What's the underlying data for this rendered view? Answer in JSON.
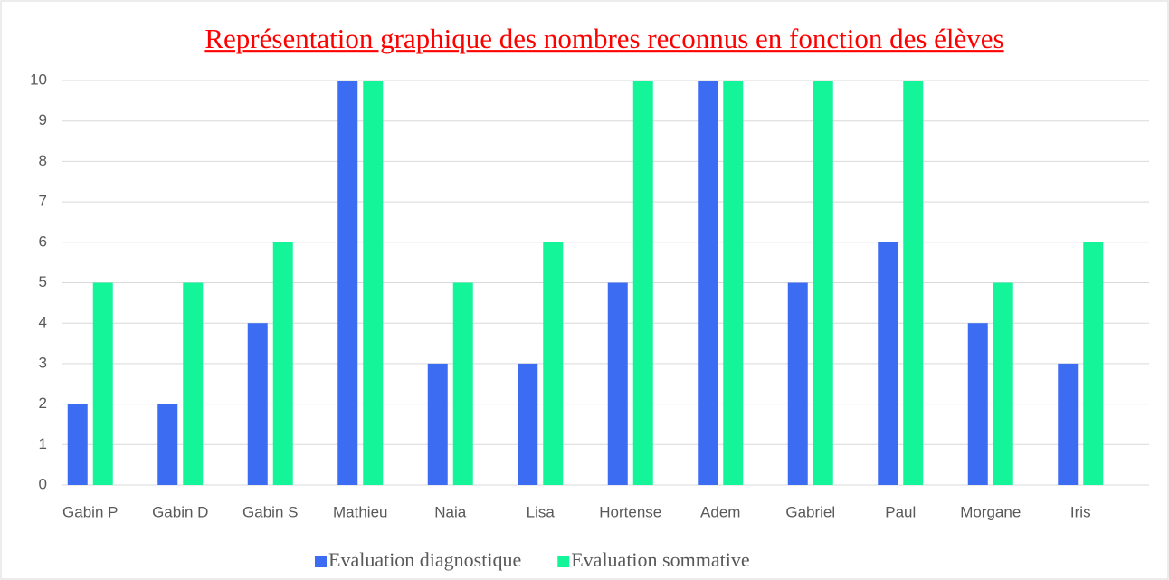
{
  "chart_data": {
    "type": "bar",
    "title": "Représentation graphique des nombres reconnus en fonction des élèves",
    "categories": [
      "Gabin P",
      "Gabin D",
      "Gabin S",
      "Mathieu",
      "Naia",
      "Lisa",
      "Hortense",
      "Adem",
      "Gabriel",
      "Paul",
      "Morgane",
      "Iris"
    ],
    "series": [
      {
        "name": "Evaluation diagnostique",
        "color": "#3b6cf2",
        "values": [
          2,
          2,
          4,
          10,
          3,
          3,
          5,
          10,
          5,
          6,
          4,
          3
        ]
      },
      {
        "name": "Evaluation sommative",
        "color": "#14f59a",
        "values": [
          5,
          5,
          6,
          10,
          5,
          6,
          10,
          10,
          10,
          10,
          5,
          6
        ]
      }
    ],
    "ylim": [
      0,
      10
    ],
    "yticks": [
      0,
      1,
      2,
      3,
      4,
      5,
      6,
      7,
      8,
      9,
      10
    ],
    "grid": true,
    "legend": "bottom"
  }
}
